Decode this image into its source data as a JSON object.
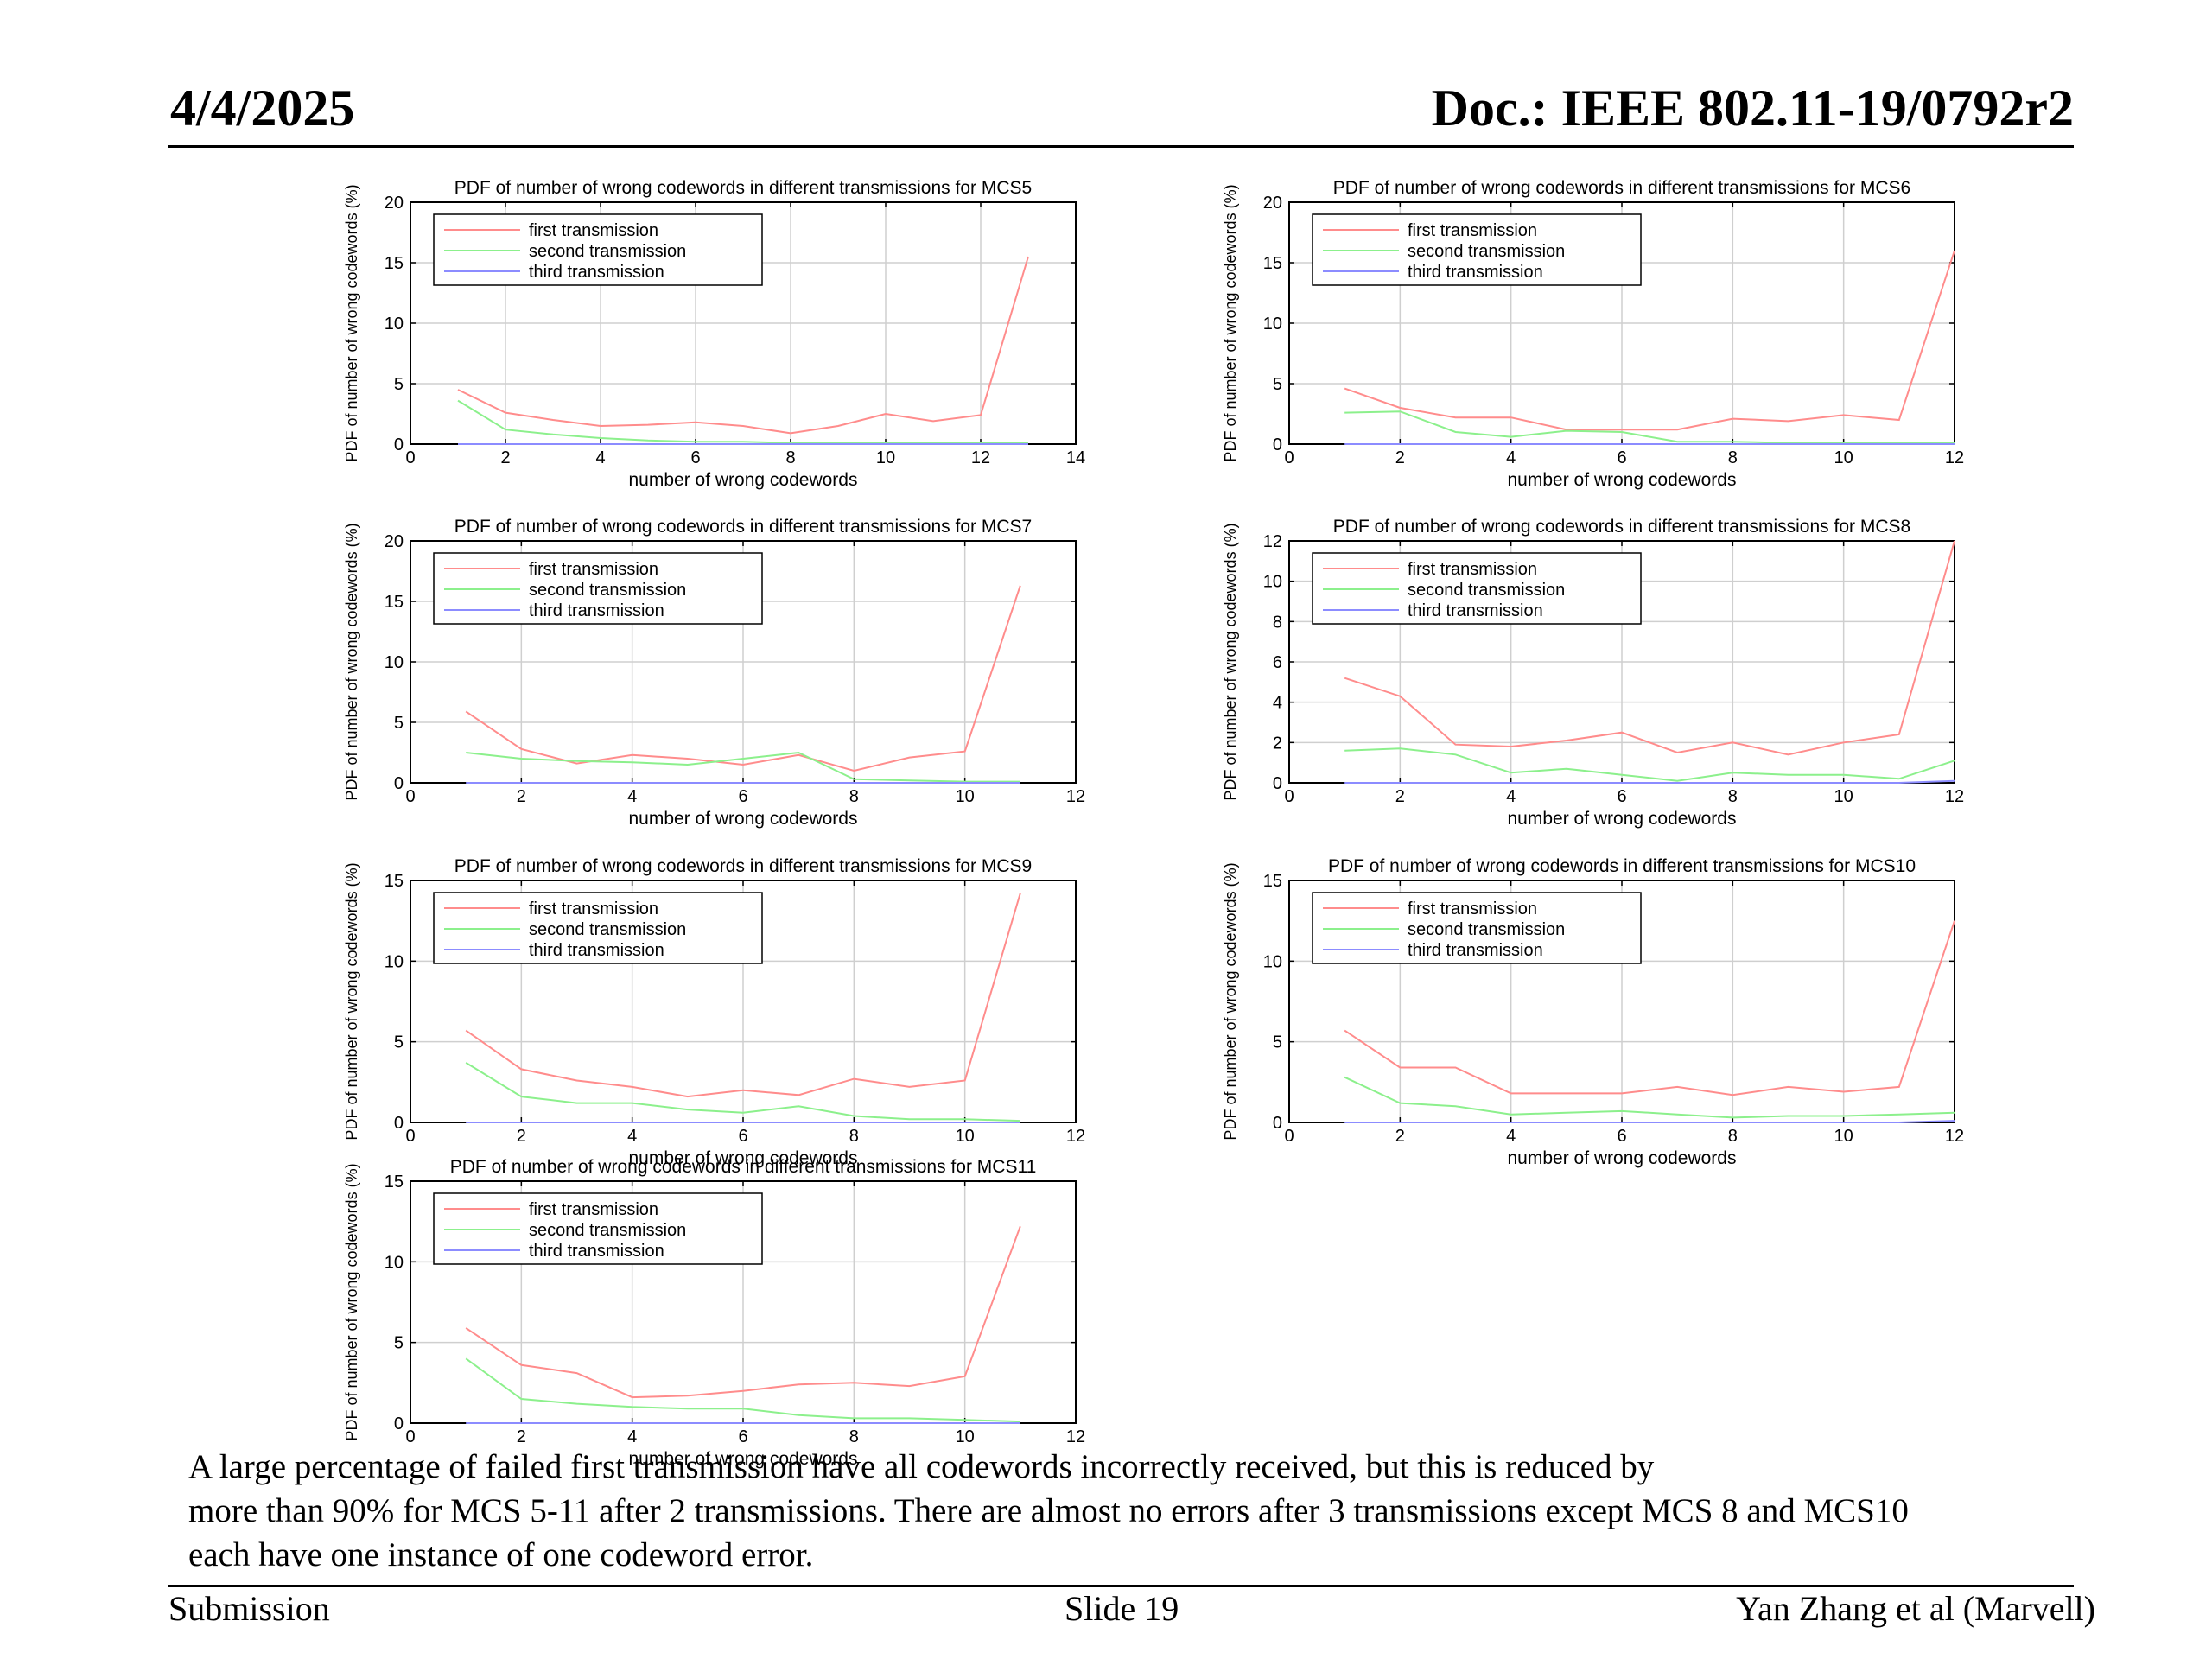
{
  "header": {
    "date": "4/4/2025",
    "doc": "Doc.: IEEE 802.11-19/0792r2"
  },
  "footer": {
    "left": "Submission",
    "center": "Slide 19",
    "right": "Yan Zhang et al (Marvell)"
  },
  "caption": [
    "A large percentage of failed first transmission have all codewords incorrectly received, but this is reduced by",
    "more than 90% for MCS 5-11 after 2 transmissions. There are almost no errors after 3 transmissions except MCS 8 and MCS10",
    "each have one instance of one codeword error."
  ],
  "colors": {
    "first": "#ff8c8c",
    "second": "#8cf08c",
    "third": "#8c8cff"
  },
  "chart_data": [
    {
      "type": "line",
      "title": "PDF of number of wrong codewords in different transmissions for MCS5",
      "xlabel": "number of wrong codewords",
      "ylabel": "PDF of number of wrong codewords (%)",
      "xlim": [
        0,
        14
      ],
      "ylim": [
        0,
        20
      ],
      "xticks": [
        0,
        2,
        4,
        6,
        8,
        10,
        12,
        14
      ],
      "yticks": [
        0,
        5,
        10,
        15,
        20
      ],
      "grid": true,
      "legend": "top-left",
      "x": [
        1,
        2,
        3,
        4,
        5,
        6,
        7,
        8,
        9,
        10,
        11,
        12,
        13
      ],
      "series": [
        {
          "name": "first transmission",
          "values": [
            4.5,
            2.6,
            2.0,
            1.5,
            1.6,
            1.8,
            1.5,
            0.9,
            1.5,
            2.5,
            1.9,
            2.4,
            15.5
          ]
        },
        {
          "name": "second transmission",
          "values": [
            3.6,
            1.2,
            0.8,
            0.5,
            0.3,
            0.2,
            0.2,
            0.1,
            0.1,
            0.1,
            0.1,
            0.1,
            0.1
          ]
        },
        {
          "name": "third transmission",
          "values": [
            0,
            0,
            0,
            0,
            0,
            0,
            0,
            0,
            0,
            0,
            0,
            0,
            0
          ]
        }
      ]
    },
    {
      "type": "line",
      "title": "PDF of number of wrong codewords in different transmissions for MCS6",
      "xlabel": "number of wrong codewords",
      "ylabel": "PDF of number of wrong codewords (%)",
      "xlim": [
        0,
        12
      ],
      "ylim": [
        0,
        20
      ],
      "xticks": [
        0,
        2,
        4,
        6,
        8,
        10,
        12
      ],
      "yticks": [
        0,
        5,
        10,
        15,
        20
      ],
      "grid": true,
      "legend": "top-left",
      "x": [
        1,
        2,
        3,
        4,
        5,
        6,
        7,
        8,
        9,
        10,
        11,
        12
      ],
      "series": [
        {
          "name": "first transmission",
          "values": [
            4.6,
            3.0,
            2.2,
            2.2,
            1.2,
            1.2,
            1.2,
            2.1,
            1.9,
            2.4,
            2.0,
            16.0
          ]
        },
        {
          "name": "second transmission",
          "values": [
            2.6,
            2.7,
            1.0,
            0.6,
            1.1,
            1.0,
            0.2,
            0.2,
            0.1,
            0.1,
            0.1,
            0.1
          ]
        },
        {
          "name": "third transmission",
          "values": [
            0,
            0,
            0,
            0,
            0,
            0,
            0,
            0,
            0,
            0,
            0,
            0
          ]
        }
      ]
    },
    {
      "type": "line",
      "title": "PDF of number of wrong codewords in different transmissions for MCS7",
      "xlabel": "number of wrong codewords",
      "ylabel": "PDF of number of wrong codewords (%)",
      "xlim": [
        0,
        12
      ],
      "ylim": [
        0,
        20
      ],
      "xticks": [
        0,
        2,
        4,
        6,
        8,
        10,
        12
      ],
      "yticks": [
        0,
        5,
        10,
        15,
        20
      ],
      "grid": true,
      "legend": "top-left",
      "x": [
        1,
        2,
        3,
        4,
        5,
        6,
        7,
        8,
        9,
        10,
        11
      ],
      "series": [
        {
          "name": "first transmission",
          "values": [
            5.9,
            2.8,
            1.6,
            2.3,
            2.0,
            1.5,
            2.3,
            1.0,
            2.1,
            2.6,
            16.3
          ]
        },
        {
          "name": "second transmission",
          "values": [
            2.5,
            2.0,
            1.8,
            1.7,
            1.5,
            2.0,
            2.5,
            0.3,
            0.2,
            0.1,
            0.1
          ]
        },
        {
          "name": "third transmission",
          "values": [
            0,
            0,
            0,
            0,
            0,
            0,
            0,
            0,
            0,
            0,
            0
          ]
        }
      ]
    },
    {
      "type": "line",
      "title": "PDF of number of wrong codewords in different transmissions for MCS8",
      "xlabel": "number of wrong codewords",
      "ylabel": "PDF of number of wrong codewords (%)",
      "xlim": [
        0,
        12
      ],
      "ylim": [
        0,
        12
      ],
      "xticks": [
        0,
        2,
        4,
        6,
        8,
        10,
        12
      ],
      "yticks": [
        0,
        2,
        4,
        6,
        8,
        10,
        12
      ],
      "grid": true,
      "legend": "top-left",
      "x": [
        1,
        2,
        3,
        4,
        5,
        6,
        7,
        8,
        9,
        10,
        11,
        12
      ],
      "series": [
        {
          "name": "first transmission",
          "values": [
            5.2,
            4.3,
            1.9,
            1.8,
            2.1,
            2.5,
            1.5,
            2.0,
            1.4,
            2.0,
            2.4,
            12.0
          ]
        },
        {
          "name": "second transmission",
          "values": [
            1.6,
            1.7,
            1.4,
            0.5,
            0.7,
            0.4,
            0.1,
            0.5,
            0.4,
            0.4,
            0.2,
            1.1
          ]
        },
        {
          "name": "third transmission",
          "values": [
            0,
            0,
            0,
            0,
            0,
            0,
            0,
            0,
            0,
            0,
            0,
            0.1
          ]
        }
      ]
    },
    {
      "type": "line",
      "title": "PDF of number of wrong codewords in different transmissions for MCS9",
      "xlabel": "number of wrong codewords",
      "ylabel": "PDF of number of wrong codewords (%)",
      "xlim": [
        0,
        12
      ],
      "ylim": [
        0,
        15
      ],
      "xticks": [
        0,
        2,
        4,
        6,
        8,
        10,
        12
      ],
      "yticks": [
        0,
        5,
        10,
        15
      ],
      "grid": true,
      "legend": "top-left",
      "x": [
        1,
        2,
        3,
        4,
        5,
        6,
        7,
        8,
        9,
        10,
        11
      ],
      "series": [
        {
          "name": "first transmission",
          "values": [
            5.7,
            3.3,
            2.6,
            2.2,
            1.6,
            2.0,
            1.7,
            2.7,
            2.2,
            2.6,
            14.2
          ]
        },
        {
          "name": "second transmission",
          "values": [
            3.7,
            1.6,
            1.2,
            1.2,
            0.8,
            0.6,
            1.0,
            0.4,
            0.2,
            0.2,
            0.1
          ]
        },
        {
          "name": "third transmission",
          "values": [
            0,
            0,
            0,
            0,
            0,
            0,
            0,
            0,
            0,
            0,
            0
          ]
        }
      ]
    },
    {
      "type": "line",
      "title": "PDF of number of wrong codewords in different transmissions for MCS10",
      "xlabel": "number of wrong codewords",
      "ylabel": "PDF of number of wrong codewords (%)",
      "xlim": [
        0,
        12
      ],
      "ylim": [
        0,
        15
      ],
      "xticks": [
        0,
        2,
        4,
        6,
        8,
        10,
        12
      ],
      "yticks": [
        0,
        5,
        10,
        15
      ],
      "grid": true,
      "legend": "top-left",
      "x": [
        1,
        2,
        3,
        4,
        5,
        6,
        7,
        8,
        9,
        10,
        11,
        12
      ],
      "series": [
        {
          "name": "first transmission",
          "values": [
            5.7,
            3.4,
            3.4,
            1.8,
            1.8,
            1.8,
            2.2,
            1.7,
            2.2,
            1.9,
            2.2,
            12.5
          ]
        },
        {
          "name": "second transmission",
          "values": [
            2.8,
            1.2,
            1.0,
            0.5,
            0.6,
            0.7,
            0.5,
            0.3,
            0.4,
            0.4,
            0.5,
            0.6
          ]
        },
        {
          "name": "third transmission",
          "values": [
            0,
            0,
            0,
            0,
            0,
            0,
            0,
            0,
            0,
            0,
            0,
            0.1
          ]
        }
      ]
    },
    {
      "type": "line",
      "title": "PDF of number of wrong codewords in different transmissions for MCS11",
      "xlabel": "number of wrong codewords",
      "ylabel": "PDF of number of wrong codewords (%)",
      "xlim": [
        0,
        12
      ],
      "ylim": [
        0,
        15
      ],
      "xticks": [
        0,
        2,
        4,
        6,
        8,
        10,
        12
      ],
      "yticks": [
        0,
        5,
        10,
        15
      ],
      "grid": true,
      "legend": "top-left",
      "x": [
        1,
        2,
        3,
        4,
        5,
        6,
        7,
        8,
        9,
        10,
        11
      ],
      "series": [
        {
          "name": "first transmission",
          "values": [
            5.9,
            3.6,
            3.1,
            1.6,
            1.7,
            2.0,
            2.4,
            2.5,
            2.3,
            2.9,
            12.2
          ]
        },
        {
          "name": "second transmission",
          "values": [
            4.0,
            1.5,
            1.2,
            1.0,
            0.9,
            0.9,
            0.5,
            0.3,
            0.3,
            0.2,
            0.1
          ]
        },
        {
          "name": "third transmission",
          "values": [
            0,
            0,
            0,
            0,
            0,
            0,
            0,
            0,
            0,
            0,
            0
          ]
        }
      ]
    }
  ]
}
